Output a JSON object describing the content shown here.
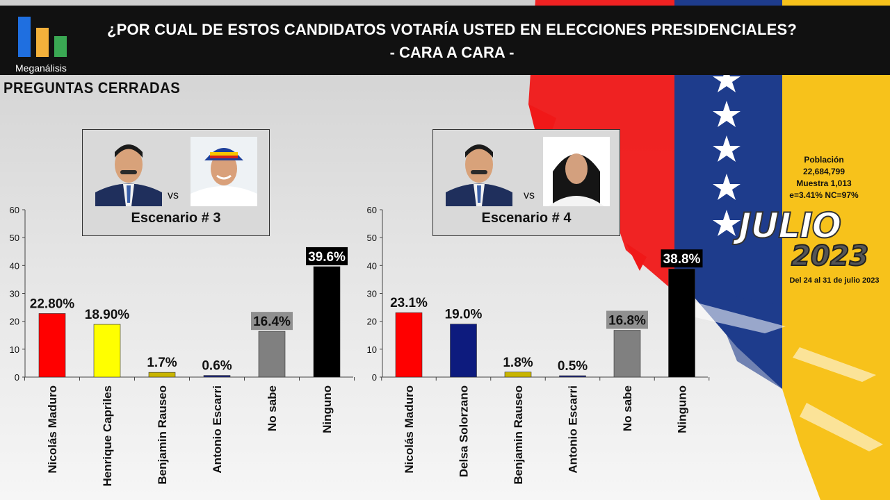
{
  "header": {
    "title_line1": "¿POR CUAL DE ESTOS CANDIDATOS VOTARÍA USTED EN ELECCIONES PRESIDENCIALES?",
    "title_line2": "- CARA A CARA -",
    "brand": "Meganálisis",
    "logo_colors": [
      "#1f6fe0",
      "#f3b13b",
      "#3aa853"
    ]
  },
  "subtitle": "PREGUNTAS  CERRADAS",
  "scenarios": [
    {
      "vs": "vs",
      "label": "Escenario # 3"
    },
    {
      "vs": "vs",
      "label": "Escenario # 4"
    }
  ],
  "info": {
    "line1": "Población",
    "line2": "22,684,799",
    "line3": "Muestra 1,013",
    "line4": "e=3.41%  NC=97%"
  },
  "badge": {
    "month": "JULIO",
    "year": "2023",
    "dates": "Del 24 al 31 de julio 2023"
  },
  "chart_data": [
    {
      "type": "bar",
      "categories": [
        "Nicolás Maduro",
        "Henrique Capriles",
        "Benjamin Rauseo",
        "Antonio Escarri",
        "No sabe",
        "Ninguno"
      ],
      "values": [
        22.8,
        18.9,
        1.7,
        0.6,
        16.4,
        39.6
      ],
      "data_labels": [
        "22.80%",
        "18.90%",
        "1.7%",
        "0.6%",
        "16.4%",
        "39.6%"
      ],
      "colors": [
        "#ff0000",
        "#ffff00",
        "#c8b400",
        "#1a237e",
        "#808080",
        "#000000"
      ],
      "yticks": [
        "0",
        "10",
        "20",
        "30",
        "40",
        "50",
        "60"
      ],
      "ylim": [
        0,
        60
      ]
    },
    {
      "type": "bar",
      "categories": [
        "Nicolás Maduro",
        "Delsa Solorzano",
        "Benjamin Rauseo",
        "Antonio Escarri",
        "No sabe",
        "Ninguno"
      ],
      "values": [
        23.1,
        19.0,
        1.8,
        0.5,
        16.8,
        38.8
      ],
      "data_labels": [
        "23.1%",
        "19.0%",
        "1.8%",
        "0.5%",
        "16.8%",
        "38.8%"
      ],
      "colors": [
        "#ff0000",
        "#0d1b7e",
        "#c8b400",
        "#1a237e",
        "#808080",
        "#000000"
      ],
      "yticks": [
        "0",
        "10",
        "20",
        "30",
        "40",
        "50",
        "60"
      ],
      "ylim": [
        0,
        60
      ]
    }
  ]
}
